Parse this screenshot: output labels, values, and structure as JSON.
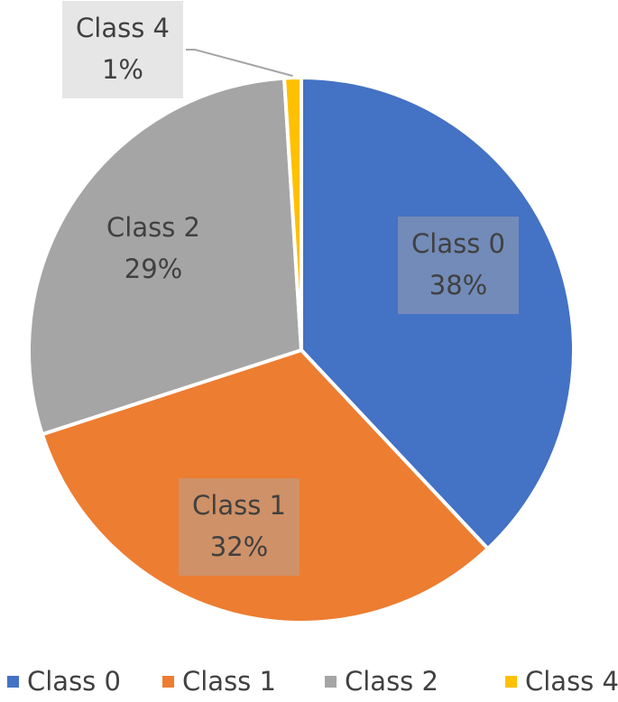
{
  "chart_data": {
    "type": "pie",
    "categories": [
      "Class 0",
      "Class 1",
      "Class 2",
      "Class 4"
    ],
    "values": [
      38,
      32,
      29,
      1
    ],
    "value_labels": [
      "38%",
      "32%",
      "29%",
      "1%"
    ],
    "colors": [
      "#4472c4",
      "#ed7d31",
      "#a5a5a5",
      "#ffc000"
    ]
  }
}
